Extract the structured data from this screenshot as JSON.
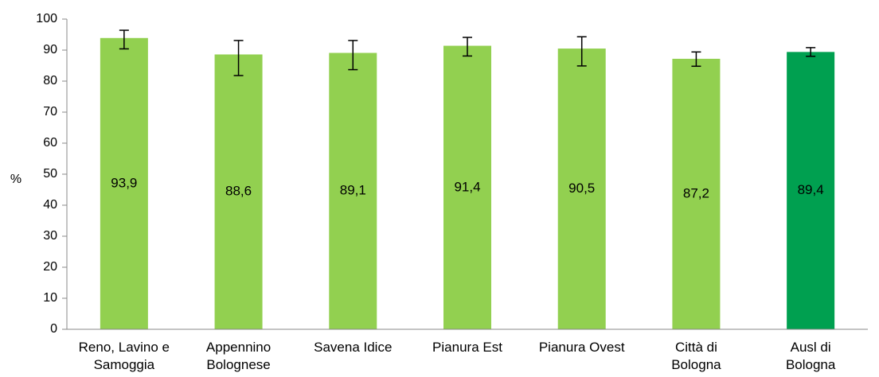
{
  "chart_data": {
    "type": "bar",
    "ylabel": "%",
    "xlabel": "",
    "ylim": [
      0,
      100
    ],
    "yticks": [
      0,
      10,
      20,
      30,
      40,
      50,
      60,
      70,
      80,
      90,
      100
    ],
    "grid": false,
    "legend": "none",
    "categories": [
      [
        "Reno, Lavino e",
        "Samoggia"
      ],
      [
        "Appennino",
        "Bolognese"
      ],
      [
        "Savena Idice"
      ],
      [
        "Pianura Est"
      ],
      [
        "Pianura Ovest"
      ],
      [
        "Città di",
        "Bologna"
      ],
      [
        "Ausl di",
        "Bologna"
      ]
    ],
    "values": [
      93.9,
      88.6,
      89.1,
      91.4,
      90.5,
      87.2,
      89.4
    ],
    "value_labels": [
      "93,9",
      "88,6",
      "89,1",
      "91,4",
      "90,5",
      "87,2",
      "89,4"
    ],
    "error_low": [
      90.4,
      81.8,
      83.7,
      88.1,
      84.9,
      84.8,
      88.0
    ],
    "error_high": [
      96.4,
      93.1,
      93.1,
      94.1,
      94.3,
      89.4,
      90.8
    ],
    "colors": [
      "#92d050",
      "#92d050",
      "#92d050",
      "#92d050",
      "#92d050",
      "#92d050",
      "#00a050"
    ]
  }
}
